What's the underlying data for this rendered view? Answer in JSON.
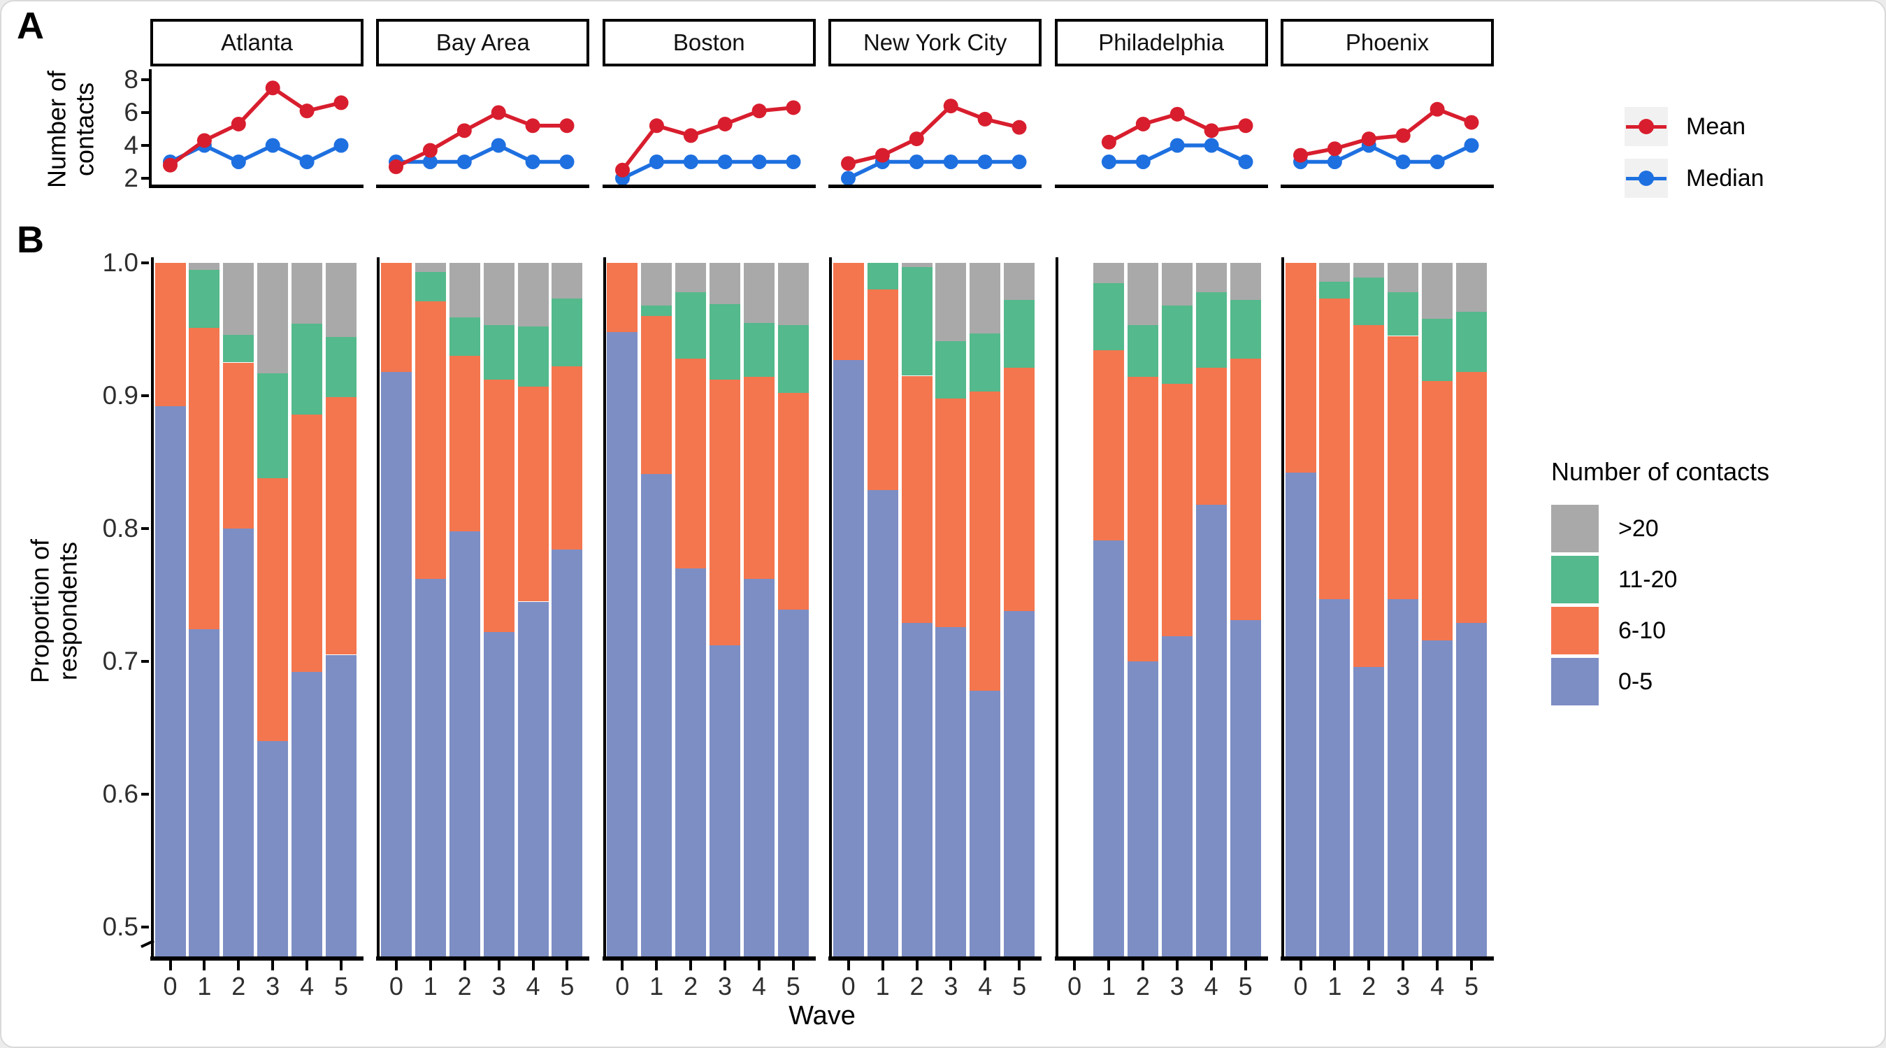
{
  "labels": {
    "panel_a": "A",
    "panel_b": "B",
    "wave_axis": "Wave",
    "ylabel_a_line1": "Number of",
    "ylabel_a_line2": "contacts",
    "ylabel_b_line1": "Proportion of",
    "ylabel_b_line2": "respondents",
    "legend_b_title": "Number of contacts"
  },
  "colors": {
    "mean": "#D81E2E",
    "median": "#1E70E0",
    "cat_0_5": "#7D8EC4",
    "cat_6_10": "#F4764E",
    "cat_11_20": "#54B98C",
    "cat_gt20": "#A9A9A9",
    "axis": "#000000",
    "tick_text": "#2e2e2e"
  },
  "cities": [
    "Atlanta",
    "Bay Area",
    "Boston",
    "New York City",
    "Philadelphia",
    "Phoenix"
  ],
  "chart_data": [
    {
      "type": "line",
      "panel": "A",
      "ylabel": "Number of contacts",
      "x": [
        0,
        1,
        2,
        3,
        4,
        5
      ],
      "ylim": [
        2,
        8
      ],
      "yticks": [
        8,
        6,
        4,
        2
      ],
      "legend": [
        {
          "name": "Mean",
          "color": "#D81E2E"
        },
        {
          "name": "Median",
          "color": "#1E70E0"
        }
      ],
      "series": [
        {
          "city": "Atlanta",
          "mean": [
            2.8,
            4.3,
            5.3,
            7.5,
            6.1,
            6.6
          ],
          "median": [
            3,
            4,
            3,
            4,
            3,
            4
          ]
        },
        {
          "city": "Bay Area",
          "mean": [
            2.7,
            3.7,
            4.9,
            6.0,
            5.2,
            5.2
          ],
          "median": [
            3,
            3,
            3,
            4,
            3,
            3
          ]
        },
        {
          "city": "Boston",
          "mean": [
            2.5,
            5.2,
            4.6,
            5.3,
            6.1,
            6.3
          ],
          "median": [
            2,
            3,
            3,
            3,
            3,
            3
          ]
        },
        {
          "city": "New York City",
          "mean": [
            2.9,
            3.4,
            4.4,
            6.4,
            5.6,
            5.1
          ],
          "median": [
            2,
            3,
            3,
            3,
            3,
            3
          ]
        },
        {
          "city": "Philadelphia",
          "mean": [
            null,
            4.2,
            5.3,
            5.9,
            4.9,
            5.2
          ],
          "median": [
            null,
            3,
            3,
            4,
            4,
            3
          ]
        },
        {
          "city": "Phoenix",
          "mean": [
            3.4,
            3.8,
            4.4,
            4.6,
            6.2,
            5.4
          ],
          "median": [
            3,
            3,
            4,
            3,
            3,
            4
          ]
        }
      ]
    },
    {
      "type": "bar",
      "panel": "B",
      "stacked": true,
      "proportion": true,
      "xlabel": "Wave",
      "ylabel": "Proportion of respondents",
      "x": [
        0,
        1,
        2,
        3,
        4,
        5
      ],
      "ylim": [
        0.478,
        1.0
      ],
      "yticks": [
        1.0,
        0.9,
        0.8,
        0.7,
        0.6,
        0.5
      ],
      "categories": [
        "0-5",
        "6-10",
        "11-20",
        ">20"
      ],
      "legend_title": "Number of contacts",
      "legend_order": [
        ">20",
        "11-20",
        "6-10",
        "0-5"
      ],
      "colors": {
        "0-5": "#7D8EC4",
        "6-10": "#F4764E",
        "11-20": "#54B98C",
        ">20": "#A9A9A9"
      },
      "series": [
        {
          "city": "Atlanta",
          "cum_0_5": [
            0.892,
            0.724,
            0.8,
            0.64,
            0.692,
            0.705
          ],
          "cum_6_10": [
            1.0,
            0.951,
            0.925,
            0.838,
            0.886,
            0.899
          ],
          "cum_11_20": [
            1.0,
            0.995,
            0.946,
            0.917,
            0.954,
            0.944
          ]
        },
        {
          "city": "Bay Area",
          "cum_0_5": [
            0.918,
            0.762,
            0.798,
            0.722,
            0.745,
            0.784
          ],
          "cum_6_10": [
            1.0,
            0.971,
            0.93,
            0.912,
            0.907,
            0.922
          ],
          "cum_11_20": [
            1.0,
            0.993,
            0.959,
            0.953,
            0.952,
            0.973
          ]
        },
        {
          "city": "Boston",
          "cum_0_5": [
            0.948,
            0.841,
            0.77,
            0.712,
            0.762,
            0.739
          ],
          "cum_6_10": [
            1.0,
            0.96,
            0.928,
            0.912,
            0.914,
            0.902
          ],
          "cum_11_20": [
            1.0,
            0.968,
            0.978,
            0.969,
            0.955,
            0.953
          ]
        },
        {
          "city": "New York City",
          "cum_0_5": [
            0.927,
            0.829,
            0.729,
            0.726,
            0.678,
            0.738
          ],
          "cum_6_10": [
            1.0,
            0.98,
            0.915,
            0.898,
            0.903,
            0.921
          ],
          "cum_11_20": [
            1.0,
            1.0,
            0.997,
            0.941,
            0.947,
            0.972
          ]
        },
        {
          "city": "Philadelphia",
          "cum_0_5": [
            null,
            0.791,
            0.7,
            0.719,
            0.818,
            0.731
          ],
          "cum_6_10": [
            null,
            0.934,
            0.914,
            0.909,
            0.921,
            0.928
          ],
          "cum_11_20": [
            null,
            0.985,
            0.953,
            0.968,
            0.978,
            0.972
          ]
        },
        {
          "city": "Phoenix",
          "cum_0_5": [
            0.842,
            0.747,
            0.696,
            0.747,
            0.716,
            0.729
          ],
          "cum_6_10": [
            1.0,
            0.973,
            0.953,
            0.945,
            0.911,
            0.918
          ],
          "cum_11_20": [
            1.0,
            0.986,
            0.989,
            0.978,
            0.958,
            0.963
          ]
        }
      ]
    }
  ]
}
